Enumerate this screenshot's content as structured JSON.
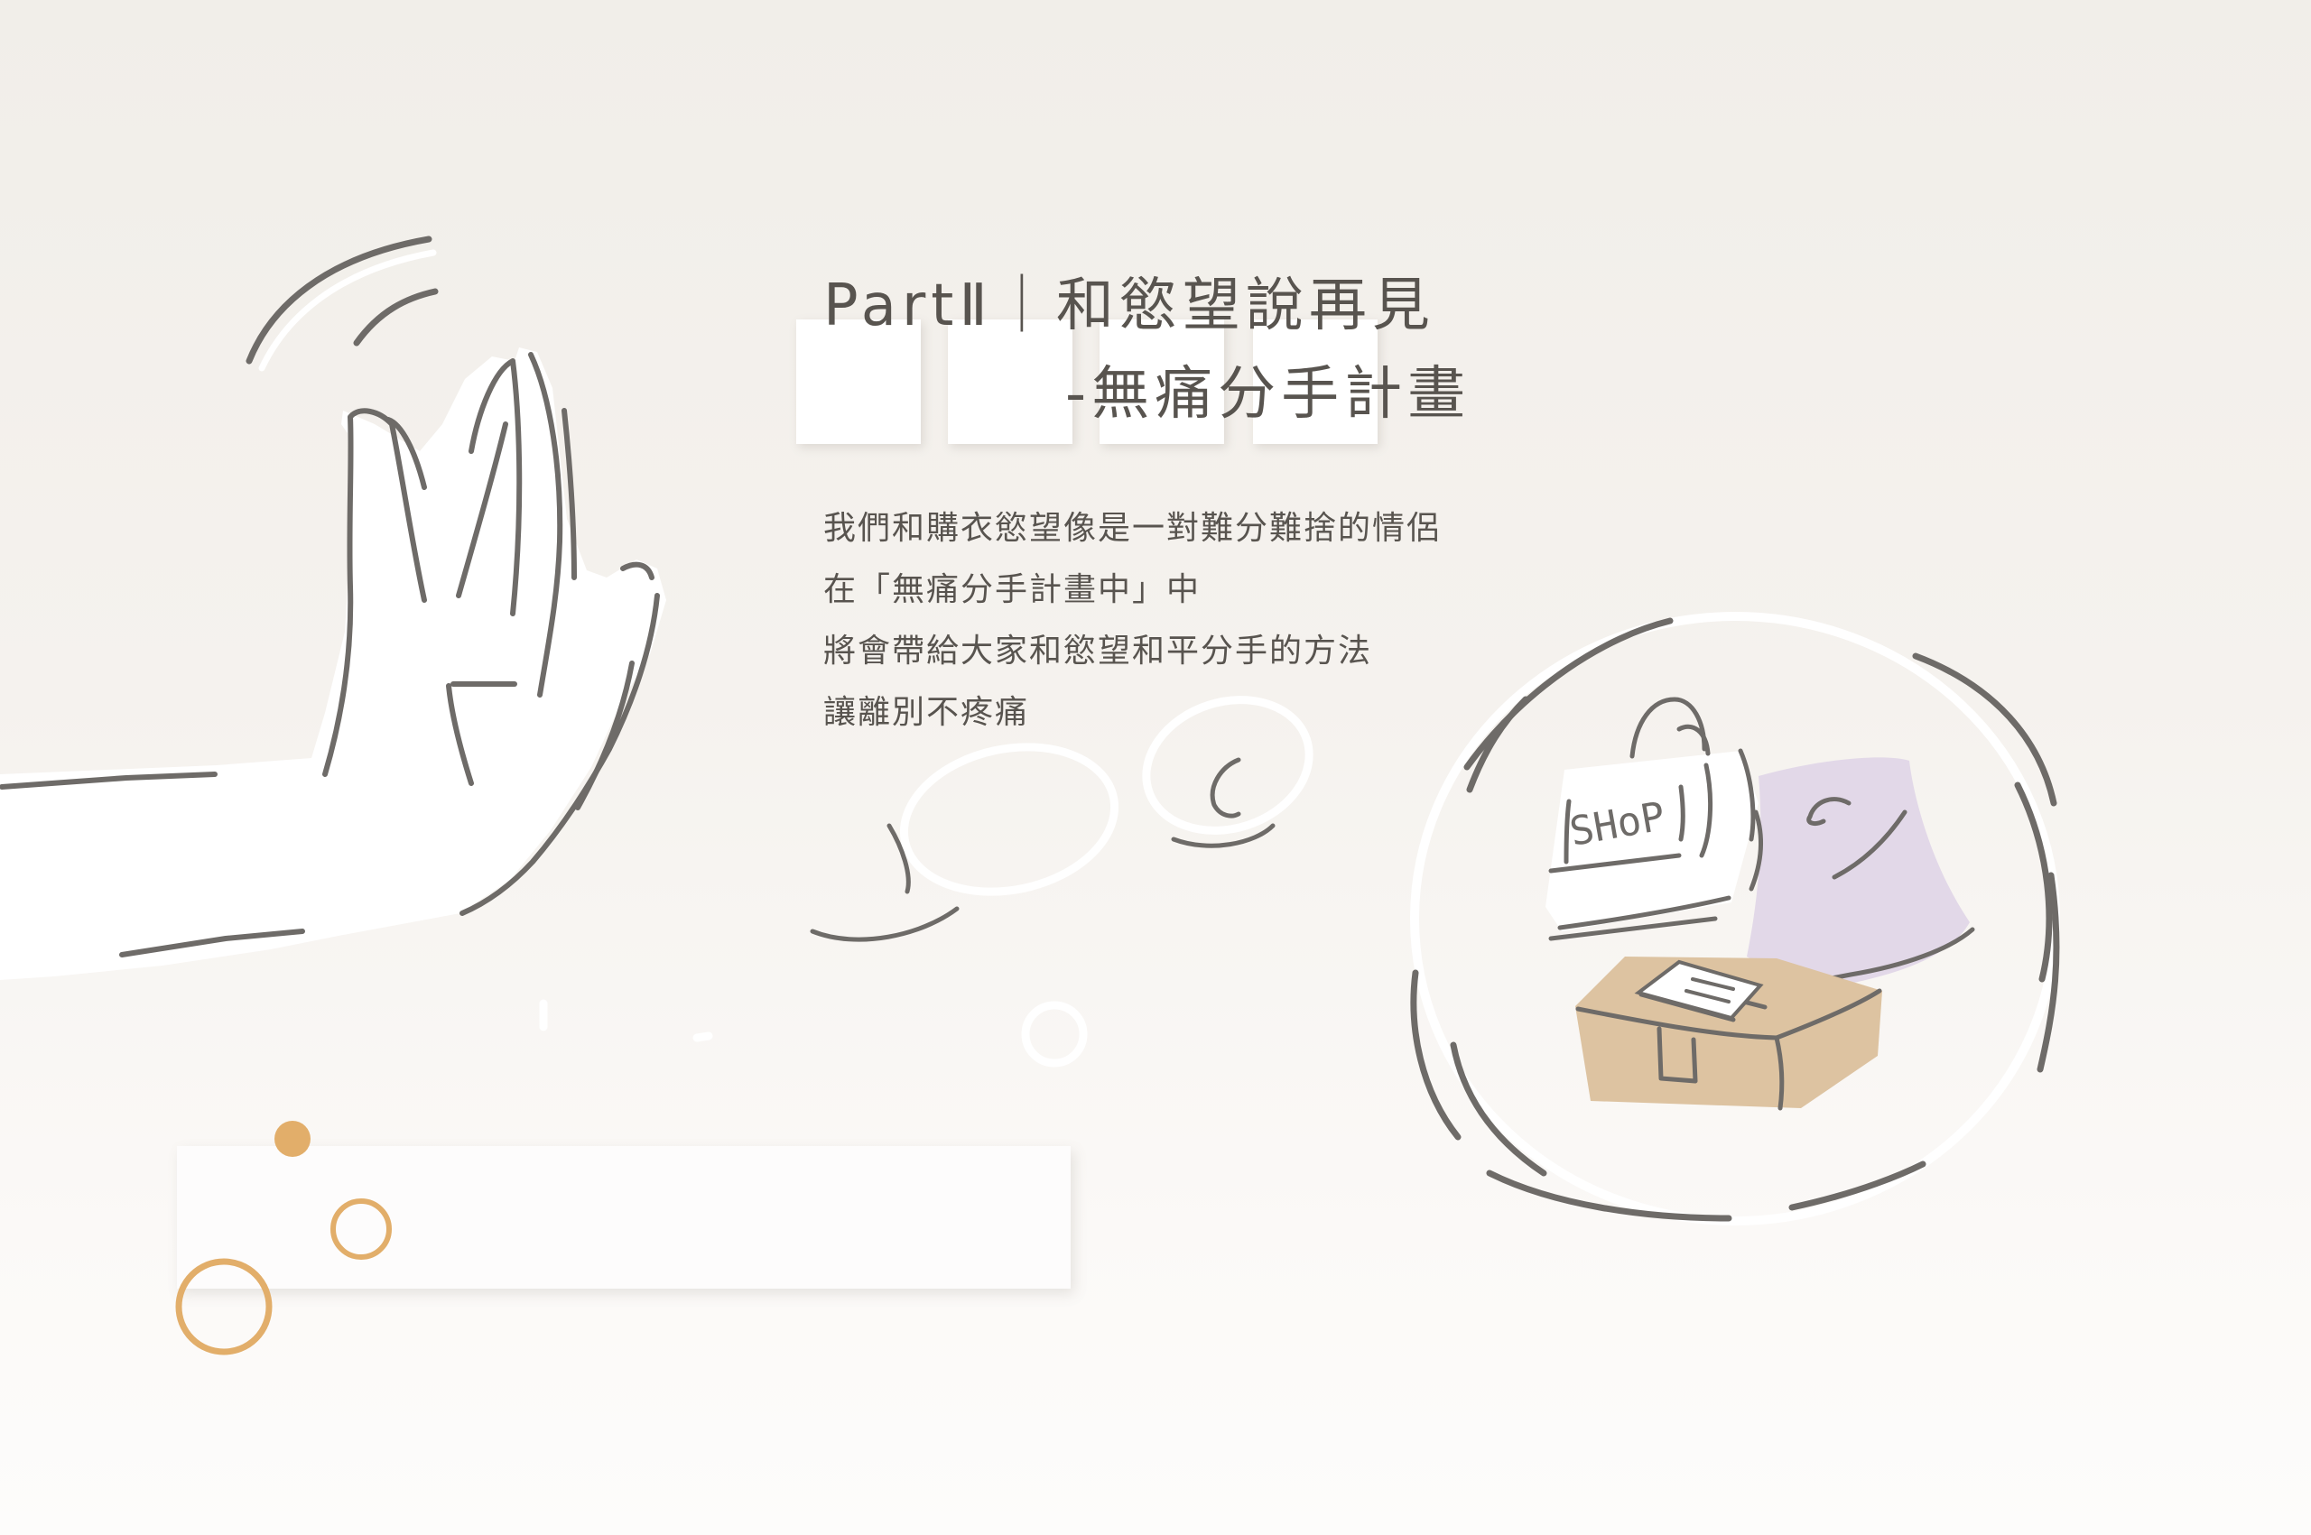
{
  "heading": {
    "line1": "PartⅡ｜和慾望說再見",
    "line2": "-無痛分手計畫"
  },
  "paragraph": {
    "lines": [
      "我們和購衣慾望像是一對難分難捨的情侶",
      "在「無痛分手計畫中」中",
      "將會帶給大家和慾望和平分手的方法",
      "讓離別不疼痛"
    ]
  },
  "illustration": {
    "shop_bag_label": "SHoP",
    "icons": [
      "waving-hand-icon",
      "shopping-bag-icon",
      "parcel-box-icon",
      "bubble-icon"
    ]
  },
  "colors": {
    "line": "#6e6b68",
    "accent_orange": "#e2ae6a",
    "bag_purple": "#e2d8e8",
    "box_tan": "#ddc3a1",
    "white": "#ffffff"
  }
}
